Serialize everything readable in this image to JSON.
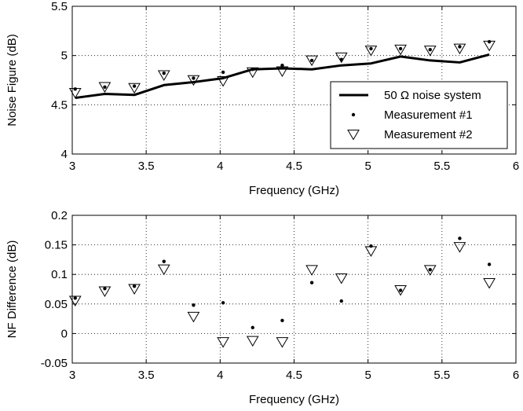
{
  "chart_data": [
    {
      "type": "line",
      "xlabel": "Frequency (GHz)",
      "ylabel": "Noise Figure (dB)",
      "xlim": [
        3,
        6
      ],
      "ylim": [
        4,
        5.5
      ],
      "xticks": [
        "3",
        "3.5",
        "4",
        "4.5",
        "5",
        "5.5",
        "6"
      ],
      "yticks": [
        "4",
        "4.5",
        "5",
        "5.5"
      ],
      "grid": true,
      "legend_position": "lower-right",
      "x": [
        3.02,
        3.22,
        3.42,
        3.62,
        3.82,
        4.02,
        4.22,
        4.42,
        4.62,
        4.82,
        5.02,
        5.22,
        5.42,
        5.62,
        5.82
      ],
      "series": [
        {
          "name": "50 Ω noise system",
          "style": "line",
          "values": [
            4.57,
            4.61,
            4.6,
            4.7,
            4.73,
            4.77,
            4.86,
            4.87,
            4.86,
            4.9,
            4.92,
            4.99,
            4.95,
            4.93,
            5.01
          ]
        },
        {
          "name": "Measurement #1",
          "style": "dot",
          "values": [
            4.66,
            4.68,
            4.69,
            4.82,
            4.77,
            4.83,
            4.86,
            4.9,
            4.95,
            4.96,
            5.07,
            5.07,
            5.06,
            5.09,
            5.14
          ]
        },
        {
          "name": "Measurement #2",
          "style": "triangle",
          "values": [
            4.63,
            4.69,
            4.68,
            4.81,
            4.76,
            4.75,
            4.84,
            4.85,
            4.96,
            4.99,
            5.06,
            5.07,
            5.06,
            5.08,
            5.11
          ]
        }
      ]
    },
    {
      "type": "scatter",
      "xlabel": "Frequency (GHz)",
      "ylabel": "NF Difference (dB)",
      "xlim": [
        3,
        6
      ],
      "ylim": [
        -0.05,
        0.2
      ],
      "xticks": [
        "3",
        "3.5",
        "4",
        "4.5",
        "5",
        "5.5",
        "6"
      ],
      "yticks": [
        "-0.05",
        "0",
        "0.05",
        "0.1",
        "0.15",
        "0.2"
      ],
      "grid": true,
      "x": [
        3.02,
        3.22,
        3.42,
        3.62,
        3.82,
        4.02,
        4.22,
        4.42,
        4.62,
        4.82,
        5.02,
        5.22,
        5.42,
        5.62,
        5.82
      ],
      "series": [
        {
          "style": "dot",
          "values": [
            0.06,
            0.076,
            0.08,
            0.122,
            0.048,
            0.052,
            0.01,
            0.022,
            0.086,
            0.055,
            0.148,
            0.073,
            0.108,
            0.161,
            0.117
          ]
        },
        {
          "style": "triangle",
          "values": [
            0.057,
            0.073,
            0.077,
            0.11,
            0.03,
            -0.013,
            -0.011,
            -0.013,
            0.109,
            0.095,
            0.141,
            0.075,
            0.109,
            0.148,
            0.087
          ]
        }
      ]
    }
  ]
}
